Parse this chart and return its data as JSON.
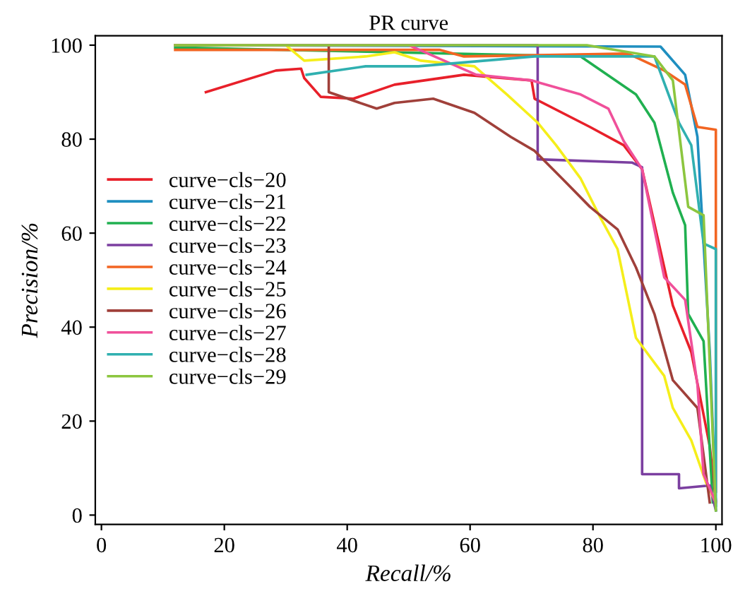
{
  "chart_data": {
    "type": "line",
    "title": "PR curve",
    "xlabel": "Recall/%",
    "ylabel": "Precision/%",
    "xlim": [
      -1,
      101
    ],
    "ylim": [
      -2,
      102
    ],
    "xticks": [
      0,
      20,
      40,
      60,
      80,
      100
    ],
    "yticks": [
      0,
      20,
      40,
      60,
      80,
      100
    ],
    "legend": "center left",
    "grid": false,
    "line_style": "solid",
    "marker": "none",
    "series": [
      {
        "name": "curve−cls−20",
        "color": "#e8202a",
        "x": [
          17,
          28.4,
          32.5,
          33,
          35.7,
          41,
          47.7,
          59,
          70,
          70.5,
          79.5,
          85,
          88,
          93,
          96,
          99,
          100
        ],
        "values": [
          90,
          94.6,
          95,
          93,
          89,
          88.6,
          91.6,
          93.7,
          92.5,
          88.6,
          82.6,
          78.7,
          73.6,
          44.6,
          34.7,
          14.7,
          3
        ]
      },
      {
        "name": "curve−cls−21",
        "color": "#1f8fc0",
        "x": [
          12,
          91,
          95,
          97,
          99,
          100
        ],
        "values": [
          100,
          99.7,
          93.7,
          80.5,
          35,
          2
        ]
      },
      {
        "name": "curve−cls−22",
        "color": "#20b050",
        "x": [
          12,
          78,
          87,
          90,
          93,
          95,
          95.5,
          98,
          99.5
        ],
        "values": [
          99.5,
          97.6,
          89.5,
          83.5,
          68.6,
          61.7,
          42.8,
          37,
          2.7
        ]
      },
      {
        "name": "curve−cls−23",
        "color": "#7b3fa0",
        "x": [
          12,
          71,
          71,
          86.4,
          88,
          88,
          94,
          94,
          99,
          100
        ],
        "values": [
          100,
          100,
          75.7,
          75,
          74,
          8.7,
          8.7,
          5.7,
          6.3,
          1
        ]
      },
      {
        "name": "curve−cls−24",
        "color": "#f26522",
        "x": [
          12,
          55,
          59,
          85.7,
          91.6,
          95,
          97,
          100,
          100,
          100,
          100
        ],
        "values": [
          99,
          99,
          97.6,
          98.2,
          94.6,
          91.6,
          82.6,
          82,
          60,
          35,
          5
        ]
      },
      {
        "name": "curve−cls−25",
        "color": "#f5ee1a",
        "x": [
          12,
          30,
          33,
          43,
          47.7,
          52,
          60.7,
          66,
          71,
          74,
          78,
          81,
          84,
          87,
          91.6,
          93,
          96,
          98.4,
          100
        ],
        "values": [
          100,
          100,
          96.7,
          97.6,
          98.5,
          96.7,
          95.5,
          89.5,
          83.5,
          78.7,
          71.6,
          63.8,
          56.6,
          37.7,
          29.6,
          22.8,
          15.9,
          6.9,
          2.7
        ]
      },
      {
        "name": "curve−cls−26",
        "color": "#a0403a",
        "x": [
          37,
          37,
          44.8,
          47.7,
          54,
          60.7,
          66.6,
          70.5,
          75,
          79.5,
          84,
          87,
          90,
          93,
          97,
          99
        ],
        "values": [
          100,
          90,
          86.5,
          87.7,
          88.6,
          85.6,
          80.5,
          77.5,
          71.6,
          65.6,
          60.8,
          52.7,
          42.8,
          28.7,
          22.8,
          2.7
        ]
      },
      {
        "name": "curve−cls−27",
        "color": "#f0509a",
        "x": [
          12,
          50,
          61,
          70,
          78,
          82.5,
          85,
          88,
          91.6,
          95,
          97,
          98,
          100
        ],
        "values": [
          100,
          100,
          93.7,
          92.5,
          89.5,
          86.5,
          79.6,
          73.6,
          50.6,
          45.8,
          27.8,
          8.7,
          2.7
        ]
      },
      {
        "name": "curve−cls−28",
        "color": "#30b0b0",
        "x": [
          33.4,
          43,
          51.6,
          70.5,
          90,
          94,
          96,
          98,
          100,
          100
        ],
        "values": [
          93.7,
          95.5,
          95.5,
          97.6,
          97.6,
          83.5,
          78.7,
          57.8,
          56.6,
          1
        ]
      },
      {
        "name": "curve−cls−29",
        "color": "#8cc63f",
        "x": [
          12,
          79,
          90,
          93,
          95.5,
          98,
          100
        ],
        "values": [
          100,
          100,
          97.6,
          92.5,
          65.6,
          63.8,
          1
        ]
      }
    ]
  }
}
